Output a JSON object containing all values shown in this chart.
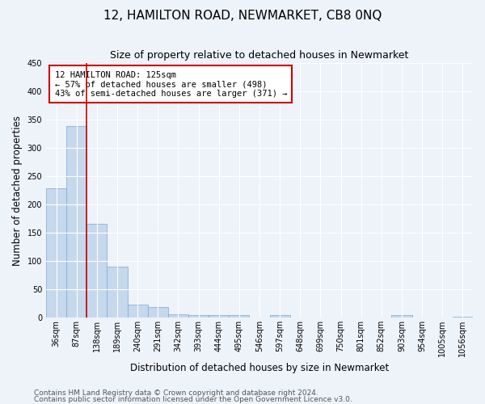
{
  "title": "12, HAMILTON ROAD, NEWMARKET, CB8 0NQ",
  "subtitle": "Size of property relative to detached houses in Newmarket",
  "xlabel": "Distribution of detached houses by size in Newmarket",
  "ylabel": "Number of detached properties",
  "bar_labels": [
    "36sqm",
    "87sqm",
    "138sqm",
    "189sqm",
    "240sqm",
    "291sqm",
    "342sqm",
    "393sqm",
    "444sqm",
    "495sqm",
    "546sqm",
    "597sqm",
    "648sqm",
    "699sqm",
    "750sqm",
    "801sqm",
    "852sqm",
    "903sqm",
    "954sqm",
    "1005sqm",
    "1056sqm"
  ],
  "bar_values": [
    228,
    338,
    166,
    90,
    23,
    18,
    6,
    5,
    4,
    4,
    0,
    4,
    0,
    0,
    0,
    0,
    0,
    4,
    0,
    0,
    1
  ],
  "bar_color": "#c5d8ed",
  "bar_edge_color": "#7aa8cc",
  "bar_width": 1.0,
  "ylim": [
    0,
    450
  ],
  "yticks": [
    0,
    50,
    100,
    150,
    200,
    250,
    300,
    350,
    400,
    450
  ],
  "red_line_x": 2,
  "annotation_title": "12 HAMILTON ROAD: 125sqm",
  "annotation_line1": "← 57% of detached houses are smaller (498)",
  "annotation_line2": "43% of semi-detached houses are larger (371) →",
  "annotation_box_color": "#ffffff",
  "annotation_box_edge": "#cc0000",
  "footer1": "Contains HM Land Registry data © Crown copyright and database right 2024.",
  "footer2": "Contains public sector information licensed under the Open Government Licence v3.0.",
  "background_color": "#eef2f9",
  "grid_color": "#ffffff",
  "title_fontsize": 11,
  "subtitle_fontsize": 9,
  "axis_label_fontsize": 8.5,
  "tick_fontsize": 7,
  "annotation_fontsize": 7.5,
  "footer_fontsize": 6.5
}
